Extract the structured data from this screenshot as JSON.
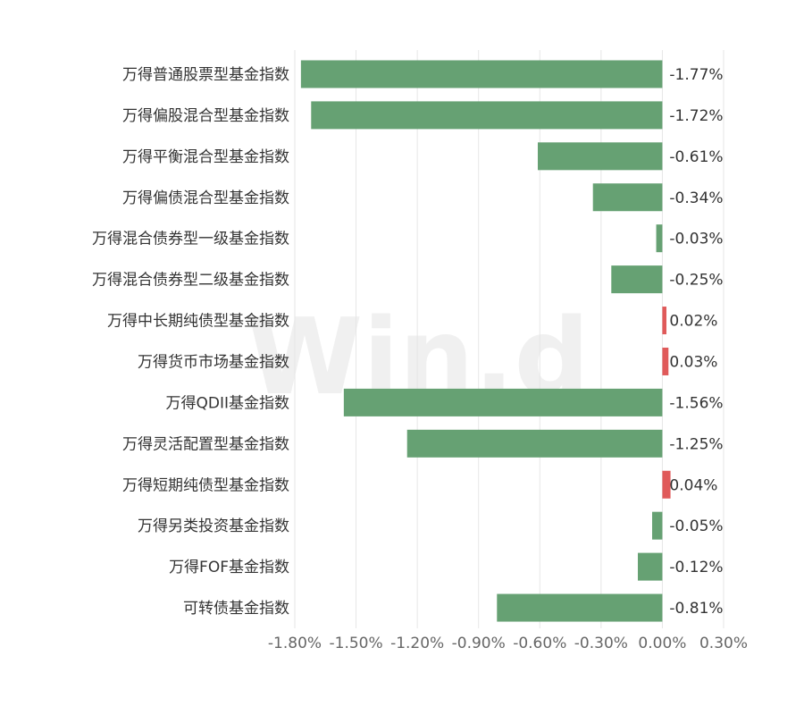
{
  "watermark": "Win.d",
  "colors": {
    "negative": "#66a173",
    "positive": "#e05a5a",
    "grid": "#e6e6e6",
    "text": "#333333",
    "tick": "#666666"
  },
  "chart_data": {
    "type": "bar",
    "orientation": "horizontal",
    "categories": [
      "万得普通股票型基金指数",
      "万得偏股混合型基金指数",
      "万得平衡混合型基金指数",
      "万得偏债混合型基金指数",
      "万得混合债券型一级基金指数",
      "万得混合债券型二级基金指数",
      "万得中长期纯债型基金指数",
      "万得货币市场基金指数",
      "万得QDII基金指数",
      "万得灵活配置型基金指数",
      "万得短期纯债型基金指数",
      "万得另类投资基金指数",
      "万得FOF基金指数",
      "可转债基金指数"
    ],
    "values": [
      -1.77,
      -1.72,
      -0.61,
      -0.34,
      -0.03,
      -0.25,
      0.02,
      0.03,
      -1.56,
      -1.25,
      0.04,
      -0.05,
      -0.12,
      -0.81
    ],
    "value_labels": [
      "-1.77%",
      "-1.72%",
      "-0.61%",
      "-0.34%",
      "-0.03%",
      "-0.25%",
      "0.02%",
      "0.03%",
      "-1.56%",
      "-1.25%",
      "0.04%",
      "-0.05%",
      "-0.12%",
      "-0.81%"
    ],
    "xlim": [
      -1.8,
      0.3
    ],
    "xticks": [
      -1.8,
      -1.5,
      -1.2,
      -0.9,
      -0.6,
      -0.3,
      0.0,
      0.3
    ],
    "xtick_labels": [
      "-1.80%",
      "-1.50%",
      "-1.20%",
      "-0.90%",
      "-0.60%",
      "-0.30%",
      "0.00%",
      "0.30%"
    ],
    "grid": true,
    "title": "",
    "xlabel": "",
    "ylabel": ""
  }
}
